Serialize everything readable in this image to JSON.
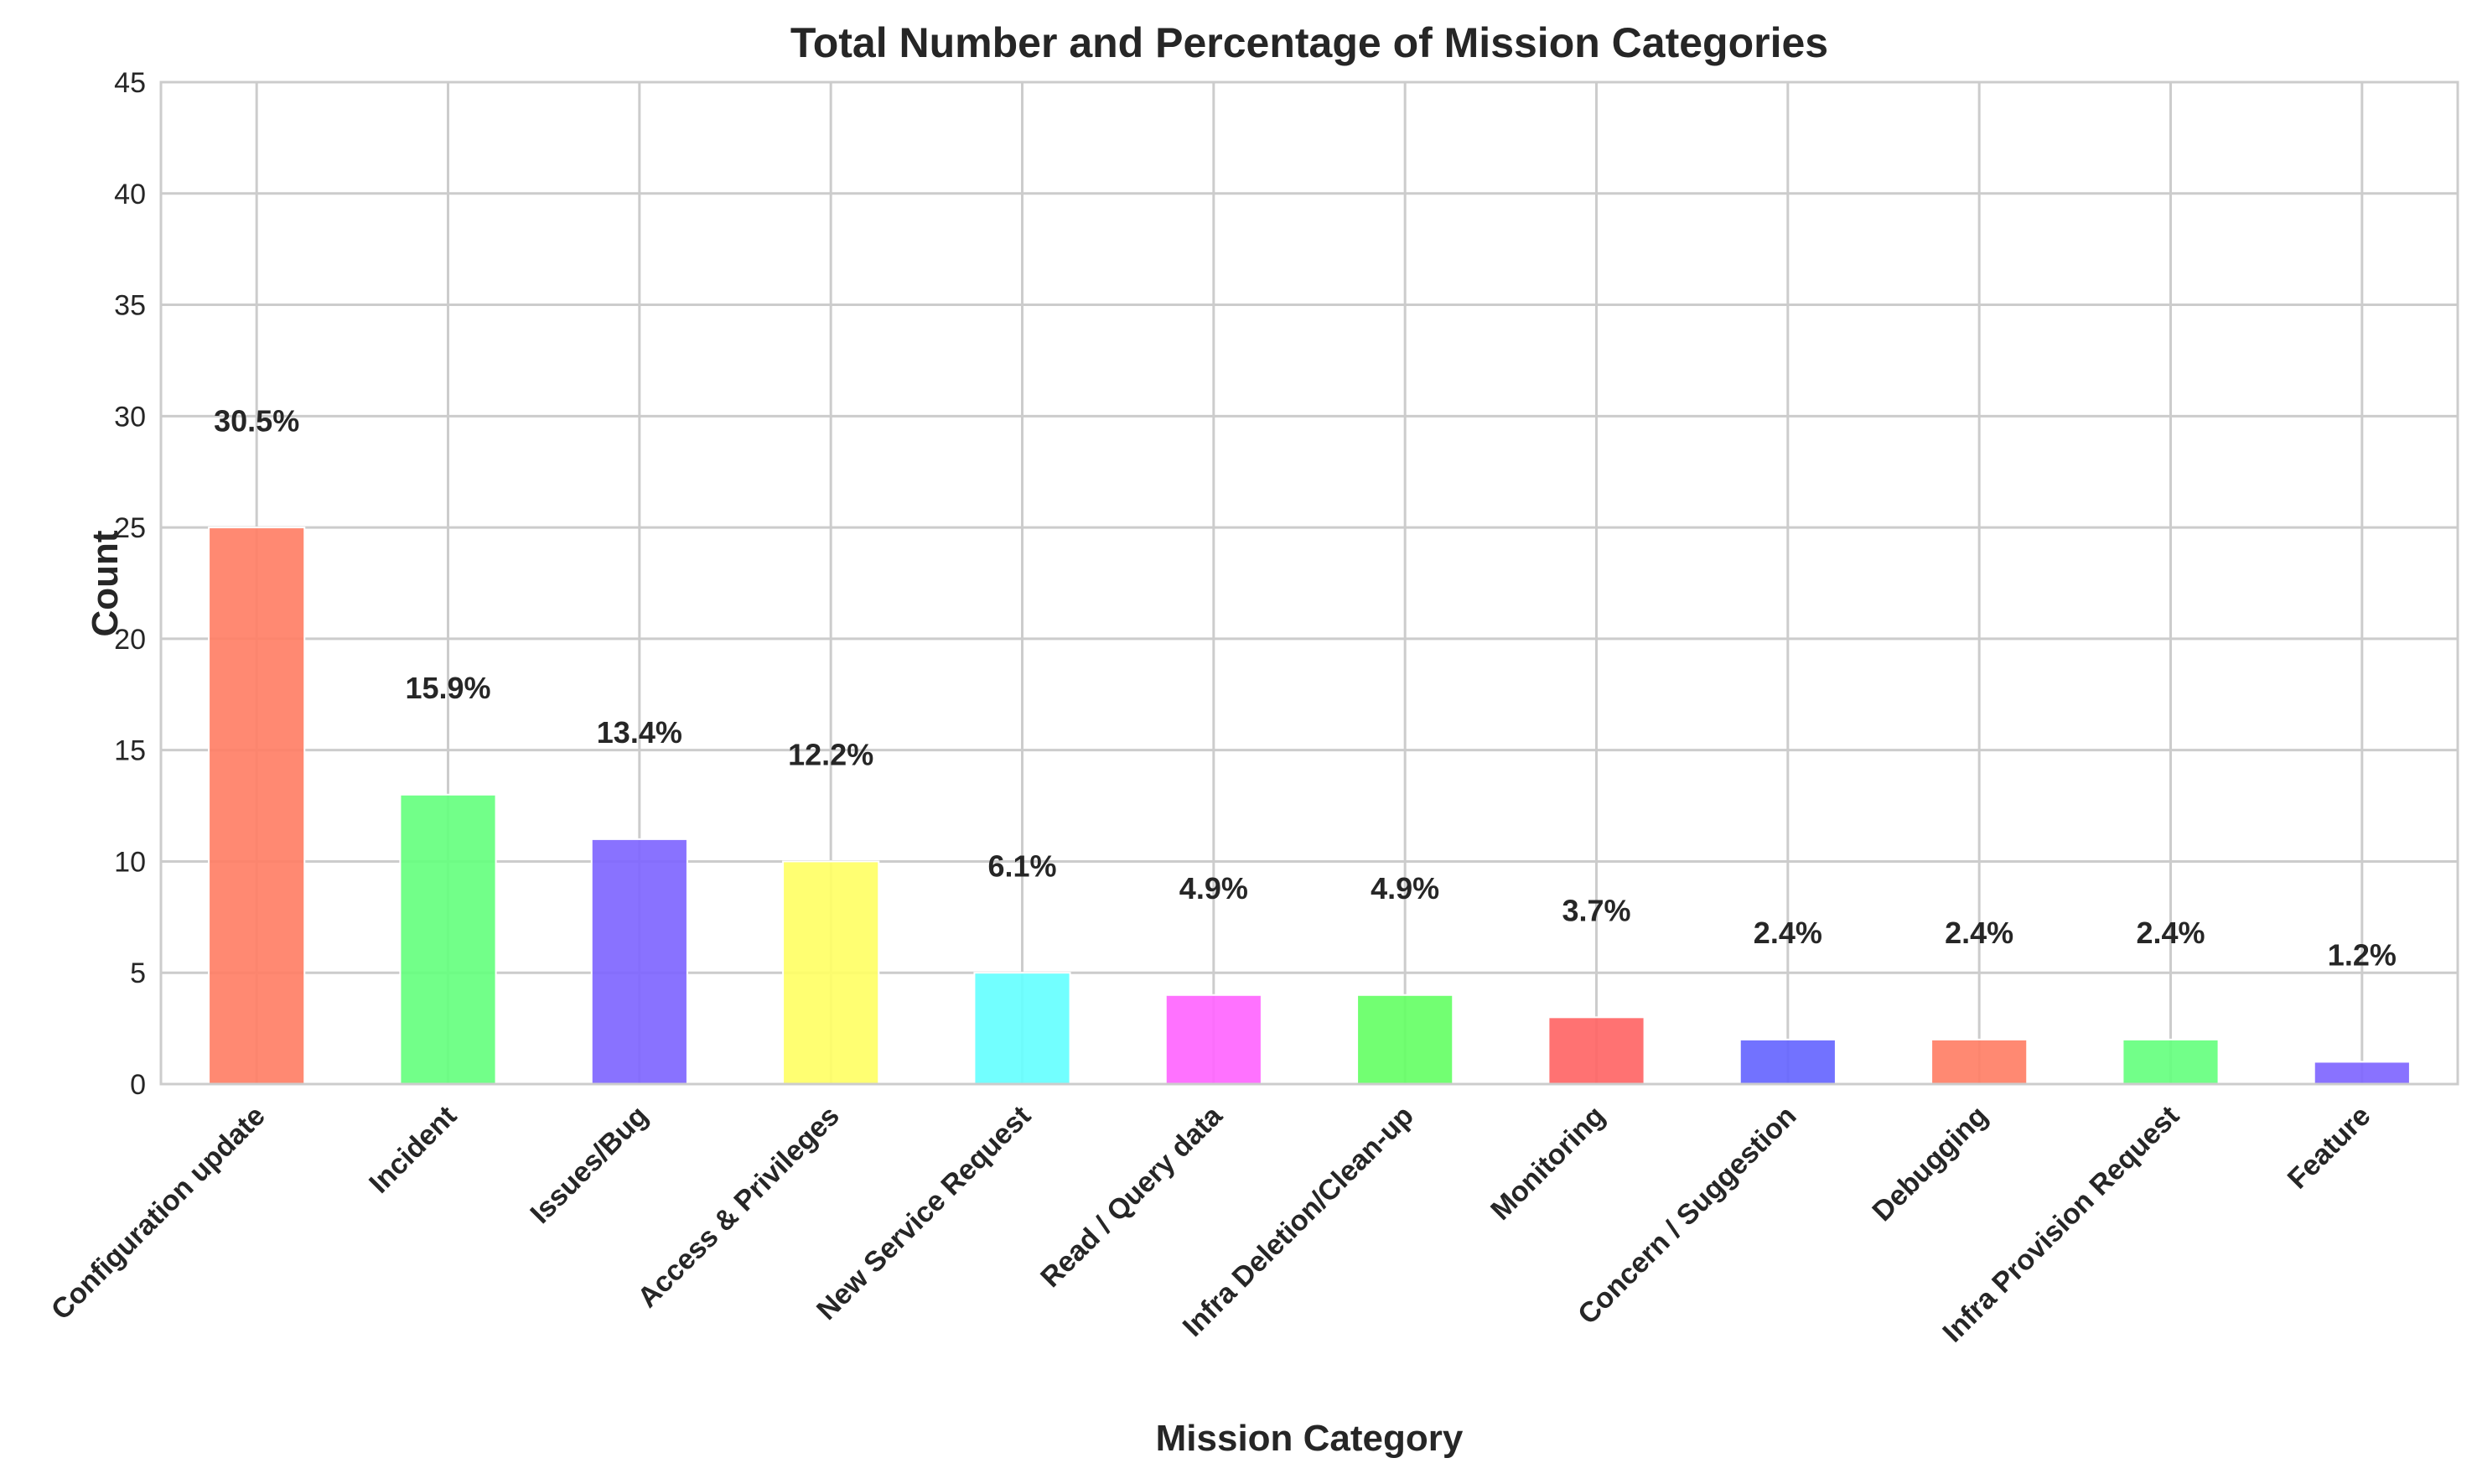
{
  "chart_data": {
    "type": "bar",
    "title": "Total Number and Percentage of Mission Categories",
    "xlabel": "Mission Category",
    "ylabel": "Count",
    "ylim": [
      0,
      45
    ],
    "yticks": [
      "0",
      "5",
      "10",
      "15",
      "20",
      "25",
      "30",
      "35",
      "40",
      "45"
    ],
    "grid": true,
    "categories": [
      "Configuration update",
      "Incident",
      "Issues/Bug",
      "Access & Privileges",
      "New Service Request",
      "Read / Query data",
      "Infra Deletion/Clean-up",
      "Monitoring",
      "Concern / Suggestion",
      "Debugging",
      "Infra Provision Request",
      "Feature"
    ],
    "values": [
      25,
      13,
      11,
      10,
      5,
      4,
      4,
      3,
      2,
      2,
      2,
      1
    ],
    "percent_labels": [
      "30.5%",
      "15.9%",
      "13.4%",
      "12.2%",
      "6.1%",
      "4.9%",
      "4.9%",
      "3.7%",
      "2.4%",
      "2.4%",
      "2.4%",
      "1.2%"
    ],
    "colors": [
      "#ff7f66",
      "#66ff7f",
      "#7f66ff",
      "#ffff66",
      "#66ffff",
      "#ff66ff",
      "#66ff66",
      "#ff6666",
      "#6666ff",
      "#ff7f66",
      "#66ff7f",
      "#7f66ff"
    ]
  }
}
